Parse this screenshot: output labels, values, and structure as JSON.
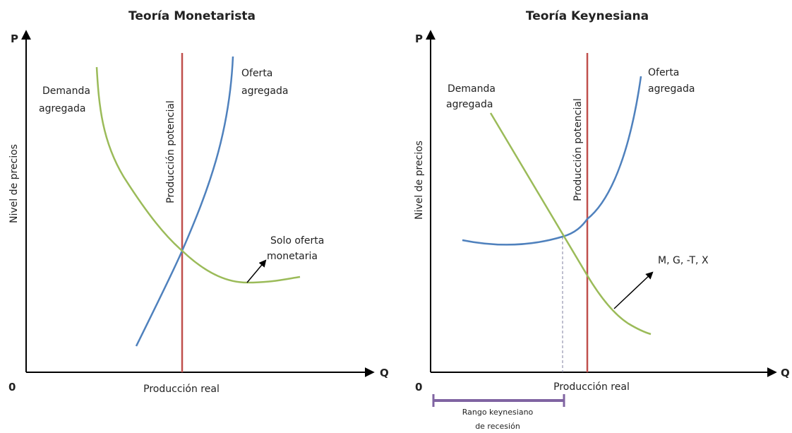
{
  "panels": [
    {
      "title": "Teoría Monetarista",
      "y_axis": "P",
      "x_axis": "Q",
      "origin": "0",
      "y_label": "Nivel de precios",
      "x_label": "Producción real",
      "vertical_label": "Producción potencial",
      "demand": [
        "Demanda",
        "agregada"
      ],
      "supply": [
        "Oferta",
        "agregada"
      ],
      "shift": [
        "Solo oferta",
        "monetaria"
      ]
    },
    {
      "title": "Teoría Keynesiana",
      "y_axis": "P",
      "x_axis": "Q",
      "origin": "0",
      "y_label": "Nivel de precios",
      "x_label": "Producción real",
      "vertical_label": "Producción potencial",
      "demand": [
        "Demanda",
        "agregada"
      ],
      "supply": [
        "Oferta",
        "agregada"
      ],
      "shift": [
        "M, G, -T, X"
      ],
      "range": [
        "Rango keynesiano",
        "de recesión"
      ]
    }
  ]
}
